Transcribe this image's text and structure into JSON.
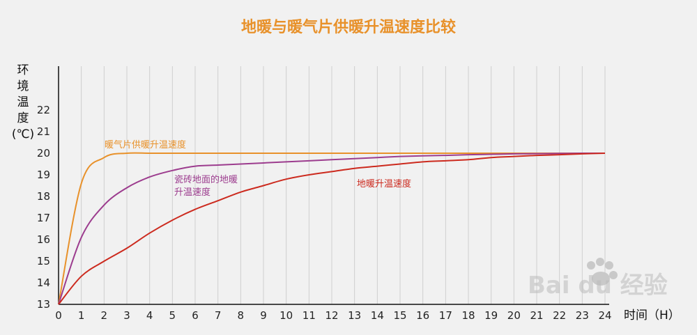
{
  "chart_data": {
    "type": "line",
    "title": "地暖与暖气片供暖升温速度比较",
    "ylabel_chars": [
      "环",
      "境",
      "温",
      "度",
      "(℃)"
    ],
    "xlabel": "时间（H）",
    "x": [
      0,
      1,
      2,
      3,
      4,
      5,
      6,
      7,
      8,
      9,
      10,
      11,
      12,
      13,
      14,
      15,
      16,
      17,
      18,
      19,
      20,
      21,
      22,
      23,
      24
    ],
    "xlim": [
      0,
      24
    ],
    "ylim": [
      13,
      22
    ],
    "yticks": [
      13,
      14,
      15,
      16,
      17,
      18,
      19,
      20,
      21,
      22
    ],
    "grid": true,
    "series": [
      {
        "label_lines": [
          "暖气片供暖升温速度"
        ],
        "color": "#e8912a",
        "values": [
          13,
          18.6,
          19.8,
          20,
          20,
          20,
          20,
          20,
          20,
          20,
          20,
          20,
          20,
          20,
          20,
          20,
          20,
          20,
          20,
          20,
          20,
          20,
          20,
          20,
          20
        ]
      },
      {
        "label_lines": [
          "瓷砖地面的地暖",
          "升温速度"
        ],
        "color": "#9c3c8e",
        "values": [
          13,
          16.1,
          17.6,
          18.4,
          18.9,
          19.2,
          19.4,
          19.45,
          19.5,
          19.55,
          19.6,
          19.65,
          19.7,
          19.75,
          19.8,
          19.85,
          19.88,
          19.9,
          19.93,
          19.95,
          19.97,
          19.98,
          19.99,
          20,
          20
        ]
      },
      {
        "label_lines": [
          "地暖升温速度"
        ],
        "color": "#cc2a1e",
        "values": [
          13,
          14.3,
          15.0,
          15.6,
          16.3,
          16.9,
          17.4,
          17.8,
          18.2,
          18.5,
          18.8,
          19.0,
          19.15,
          19.3,
          19.4,
          19.5,
          19.6,
          19.65,
          19.7,
          19.8,
          19.85,
          19.9,
          19.93,
          19.97,
          20
        ]
      }
    ],
    "title_color": "#e8912a",
    "watermark": "Bai du 经验"
  }
}
